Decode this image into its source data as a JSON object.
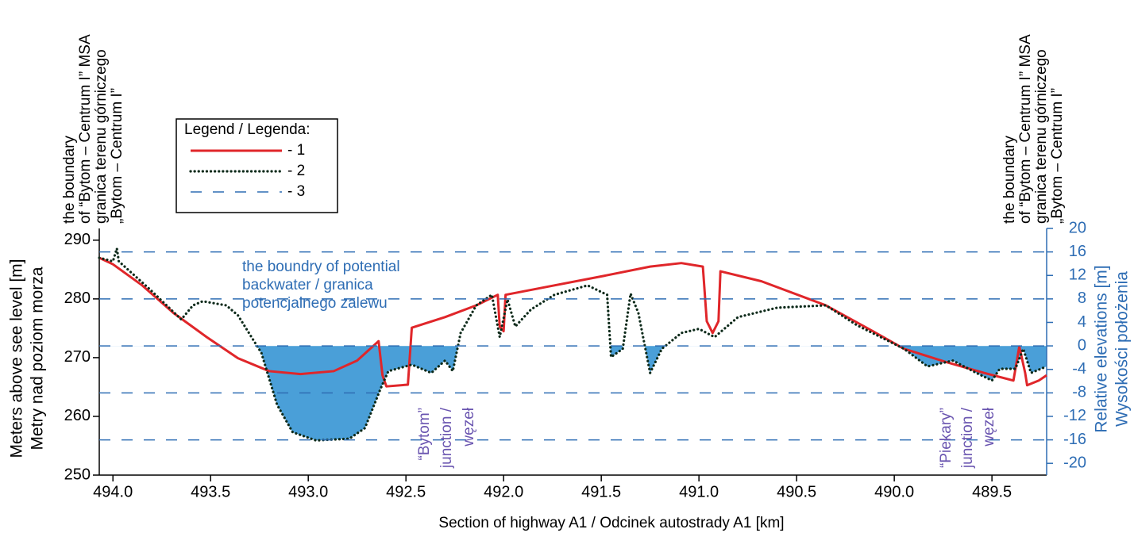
{
  "chart_data": {
    "type": "line",
    "x_label": "Section of highway A1 / Odcinek autostrady A1 [km]",
    "y_label": [
      "Meters above see level [m]",
      "Metry nad poziom morza"
    ],
    "y2_label": [
      "Relative elevations [m]",
      "Wysokości położenia"
    ],
    "xlim": [
      494.07,
      489.22
    ],
    "xticks": [
      {
        "value": 494.0,
        "label": "494.0"
      },
      493.5,
      {
        "value": 493.0,
        "label": "493.0"
      },
      492.5,
      {
        "value": 492.0,
        "label": "492.0"
      },
      491.5,
      {
        "value": 491.0,
        "label": "491.0"
      },
      490.5,
      {
        "value": 490.0,
        "label": "490.0"
      },
      489.5
    ],
    "ylim": [
      250,
      292
    ],
    "yticks": [
      250,
      260,
      270,
      280,
      290
    ],
    "y2lim": [
      -22,
      20
    ],
    "y2ticks": [
      -20,
      -16,
      -12,
      -8,
      -4,
      0,
      4,
      8,
      12,
      16,
      20
    ],
    "legend_title": "Legend / Legenda:",
    "fill_below": 0,
    "fill_color": "#4a9fd8",
    "series": [
      {
        "name": "- 1",
        "color": "#e0262a",
        "style": "solid",
        "x": [
          494.07,
          494.0,
          493.85,
          493.69,
          493.52,
          493.36,
          493.2,
          493.04,
          492.87,
          492.75,
          492.64,
          492.62,
          492.6,
          492.49,
          492.47,
          492.3,
          492.14,
          492.03,
          492.02,
          492.0,
          491.99,
          491.74,
          491.49,
          491.25,
          491.09,
          490.98,
          490.96,
          490.93,
          490.9,
          490.89,
          490.68,
          490.35,
          490.11,
          489.95,
          489.74,
          489.54,
          489.39,
          489.36,
          489.33,
          489.32,
          489.26,
          489.22
        ],
        "values": [
          287.0,
          285.9,
          282.3,
          277.6,
          273.5,
          269.9,
          267.7,
          267.2,
          267.7,
          269.5,
          272.8,
          267.0,
          265.1,
          265.4,
          275.1,
          276.9,
          278.9,
          280.7,
          275.3,
          274.5,
          280.7,
          282.3,
          283.9,
          285.5,
          286.1,
          285.5,
          276.2,
          274.2,
          276.2,
          284.7,
          283.0,
          278.9,
          274.5,
          271.5,
          269.3,
          267.4,
          266.1,
          271.9,
          267.4,
          265.3,
          266.1,
          267.0
        ]
      },
      {
        "name": "- 2",
        "color": "#0d2a1a",
        "style": "dotted",
        "x": [
          494.07,
          494.0,
          493.98,
          493.97,
          493.81,
          493.65,
          493.59,
          493.54,
          493.42,
          493.36,
          493.24,
          493.16,
          493.08,
          492.96,
          492.79,
          492.71,
          492.63,
          492.59,
          492.47,
          492.37,
          492.3,
          492.26,
          492.22,
          492.14,
          492.06,
          492.02,
          491.98,
          491.94,
          491.86,
          491.74,
          491.57,
          491.47,
          491.45,
          491.39,
          491.35,
          491.31,
          491.25,
          491.19,
          491.09,
          491.0,
          490.92,
          490.8,
          490.6,
          490.35,
          490.19,
          489.95,
          489.83,
          489.7,
          489.58,
          489.5,
          489.46,
          489.38,
          489.34,
          489.3,
          489.22
        ],
        "values": [
          287.0,
          286.4,
          288.6,
          286.4,
          281.6,
          276.5,
          278.9,
          279.6,
          278.9,
          277.2,
          270.8,
          262.0,
          257.3,
          255.9,
          256.2,
          258.0,
          264.7,
          267.7,
          268.8,
          267.4,
          269.5,
          267.7,
          274.2,
          278.9,
          280.7,
          273.5,
          279.9,
          275.3,
          278.2,
          280.7,
          282.3,
          280.7,
          270.1,
          271.5,
          280.9,
          277.6,
          267.4,
          271.5,
          274.2,
          274.9,
          273.5,
          276.9,
          278.5,
          278.9,
          275.5,
          271.5,
          268.5,
          269.5,
          267.4,
          266.1,
          268.1,
          268.1,
          271.5,
          267.4,
          268.5
        ]
      },
      {
        "name": "- 3",
        "color": "#2e6db4",
        "style": "dashed",
        "axis": "y2",
        "values": [
          16,
          8,
          0,
          -8,
          -16
        ]
      }
    ],
    "annotations": [
      {
        "lines": [
          "the boundary",
          "of “Bytom – Centrum I” MSA",
          "granica terenu górniczego",
          "„Bytom – Centrum I”"
        ]
      },
      {
        "lines": [
          "the boundary",
          "of “Bytom – Centrum I” MSA",
          "granica terenu górniczego",
          "„Bytom – Centrum I”"
        ]
      },
      {
        "lines": [
          "the boundry of potential",
          "backwater / granica",
          "potencjalnego zalewu"
        ]
      },
      {
        "lines": [
          "“Bytom”",
          "junction /",
          "węzeł"
        ]
      },
      {
        "lines": [
          "“Piekary”",
          "junction /",
          "węzeł"
        ]
      }
    ]
  }
}
